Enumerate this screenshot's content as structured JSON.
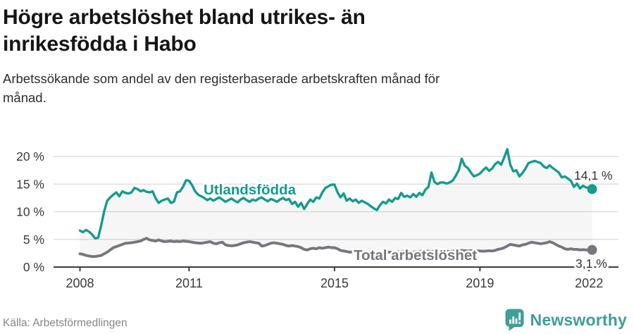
{
  "header": {
    "title_lines": [
      "Högre arbetslöshet bland utrikes- än",
      "inrikesfödda i Habo"
    ],
    "subtitle_lines": [
      "Arbetssökande som andel av den registerbaserade arbetskraften månad för",
      "månad."
    ]
  },
  "footer": {
    "source": "Källa: Arbetsförmedlingen",
    "brand": "Newsworthy"
  },
  "colors": {
    "teal": "#169b8d",
    "gray": "#76767e",
    "grid": "#d9d9d9",
    "axis": "#3c3c3c",
    "tick_text": "#3a3a3a",
    "value_text": "#333333",
    "band": "rgba(125,125,135,0.07)",
    "brand_teal": "#3f9e96",
    "halo": "#ffffff"
  },
  "chart_data": {
    "type": "line",
    "title": "Högre arbetslöshet bland utrikes- än inrikesfödda i Habo",
    "xlabel": "",
    "ylabel": "",
    "unit": "%",
    "grid": true,
    "legend_position": "inline-labels",
    "band_fill_between_series": true,
    "ylim": [
      0,
      20
    ],
    "y_ticks": [
      {
        "value": 0,
        "label": "0 %"
      },
      {
        "value": 5,
        "label": "5 %"
      },
      {
        "value": 10,
        "label": "10 %"
      },
      {
        "value": 15,
        "label": "15 %"
      },
      {
        "value": 20,
        "label": "20 %"
      }
    ],
    "x_ticks": [
      {
        "label": "2008",
        "month_index": 0
      },
      {
        "label": "2011",
        "month_index": 36
      },
      {
        "label": "2015",
        "month_index": 84
      },
      {
        "label": "2019",
        "month_index": 132
      },
      {
        "label": "2022",
        "month_index": 168
      }
    ],
    "series": [
      {
        "name": "Utlandsfödda",
        "end_label": "14,1 %",
        "end_value": 14.1,
        "values": [
          6.6,
          6.3,
          6.7,
          6.4,
          5.9,
          5.2,
          5.3,
          7.5,
          10.1,
          12.0,
          12.6,
          13.1,
          13.5,
          12.8,
          13.7,
          13.4,
          13.3,
          13.5,
          14.3,
          14.1,
          13.7,
          13.9,
          13.6,
          13.5,
          13.7,
          12.4,
          11.6,
          12.0,
          12.2,
          12.4,
          11.6,
          11.8,
          13.5,
          13.7,
          14.5,
          15.7,
          15.6,
          14.8,
          13.7,
          13.1,
          12.8,
          12.5,
          12.1,
          12.4,
          12.0,
          12.3,
          12.6,
          12.2,
          11.8,
          12.1,
          12.4,
          12.0,
          11.7,
          12.2,
          12.5,
          12.1,
          11.8,
          12.2,
          12.0,
          12.4,
          12.6,
          12.2,
          11.9,
          12.3,
          12.1,
          11.8,
          12.2,
          12.5,
          12.1,
          12.3,
          11.4,
          11.8,
          10.9,
          11.6,
          10.5,
          11.4,
          12.2,
          11.8,
          12.6,
          12.4,
          13.5,
          14.3,
          14.6,
          14.9,
          14.9,
          13.5,
          12.6,
          13.3,
          12.0,
          12.4,
          11.9,
          12.2,
          11.6,
          12.0,
          11.7,
          11.4,
          11.0,
          10.6,
          10.3,
          11.2,
          11.8,
          11.5,
          12.2,
          11.8,
          12.5,
          12.3,
          13.4,
          12.7,
          12.9,
          12.6,
          13.2,
          12.7,
          13.4,
          13.0,
          14.0,
          14.5,
          17.1,
          15.4,
          15.0,
          15.3,
          15.3,
          15.1,
          15.3,
          15.6,
          16.5,
          17.5,
          19.6,
          18.3,
          17.9,
          17.1,
          16.4,
          16.6,
          16.9,
          17.5,
          18.0,
          17.4,
          17.8,
          18.6,
          19.0,
          18.5,
          19.8,
          21.3,
          18.5,
          17.3,
          17.5,
          16.4,
          17.0,
          17.8,
          18.8,
          19.0,
          19.2,
          19.0,
          18.8,
          18.2,
          17.9,
          18.4,
          17.9,
          17.5,
          17.1,
          16.2,
          16.4,
          16.0,
          15.6,
          14.5,
          15.1,
          14.2,
          14.7,
          14.4,
          14.3,
          14.1
        ]
      },
      {
        "name": "Total arbetslöshet",
        "end_label": "3,1 %",
        "end_value": 3.1,
        "values": [
          2.4,
          2.3,
          2.1,
          2.0,
          1.9,
          1.9,
          2.0,
          2.1,
          2.4,
          2.7,
          3.1,
          3.5,
          3.7,
          3.9,
          4.1,
          4.3,
          4.35,
          4.4,
          4.5,
          4.6,
          4.7,
          5.0,
          5.2,
          4.9,
          4.8,
          4.7,
          4.9,
          4.7,
          4.6,
          4.65,
          4.7,
          4.6,
          4.65,
          4.6,
          4.7,
          4.65,
          4.6,
          4.5,
          4.4,
          4.35,
          4.3,
          4.4,
          4.5,
          4.6,
          4.3,
          4.2,
          4.4,
          4.5,
          4.0,
          3.9,
          3.85,
          3.9,
          4.0,
          4.2,
          4.4,
          4.5,
          4.6,
          4.5,
          4.4,
          4.3,
          3.8,
          3.9,
          4.1,
          4.3,
          4.4,
          4.3,
          4.2,
          4.1,
          3.9,
          3.8,
          3.9,
          3.8,
          3.7,
          3.5,
          3.2,
          3.1,
          3.3,
          3.4,
          3.3,
          3.5,
          3.4,
          3.5,
          3.6,
          3.5,
          3.5,
          3.3,
          3.0,
          2.9,
          2.8,
          2.7,
          2.75,
          2.8,
          2.7,
          2.75,
          2.8,
          2.7,
          2.7,
          2.65,
          2.6,
          2.65,
          2.7,
          2.75,
          2.7,
          2.65,
          2.7,
          2.75,
          2.8,
          2.85,
          2.8,
          2.75,
          2.7,
          2.75,
          2.8,
          2.85,
          2.9,
          2.85,
          2.8,
          2.85,
          2.9,
          2.95,
          2.9,
          2.85,
          2.8,
          2.85,
          2.9,
          2.95,
          3.0,
          2.95,
          2.9,
          2.95,
          3.0,
          2.95,
          2.9,
          2.85,
          2.9,
          2.95,
          2.9,
          3.0,
          3.2,
          3.3,
          3.5,
          3.8,
          4.1,
          4.0,
          3.9,
          3.8,
          4.0,
          4.1,
          4.3,
          4.5,
          4.4,
          4.3,
          4.2,
          4.3,
          4.4,
          4.6,
          4.4,
          4.1,
          3.8,
          3.6,
          3.3,
          3.2,
          3.3,
          3.2,
          3.2,
          3.1,
          3.15,
          3.1,
          3.1,
          3.1
        ]
      }
    ]
  }
}
